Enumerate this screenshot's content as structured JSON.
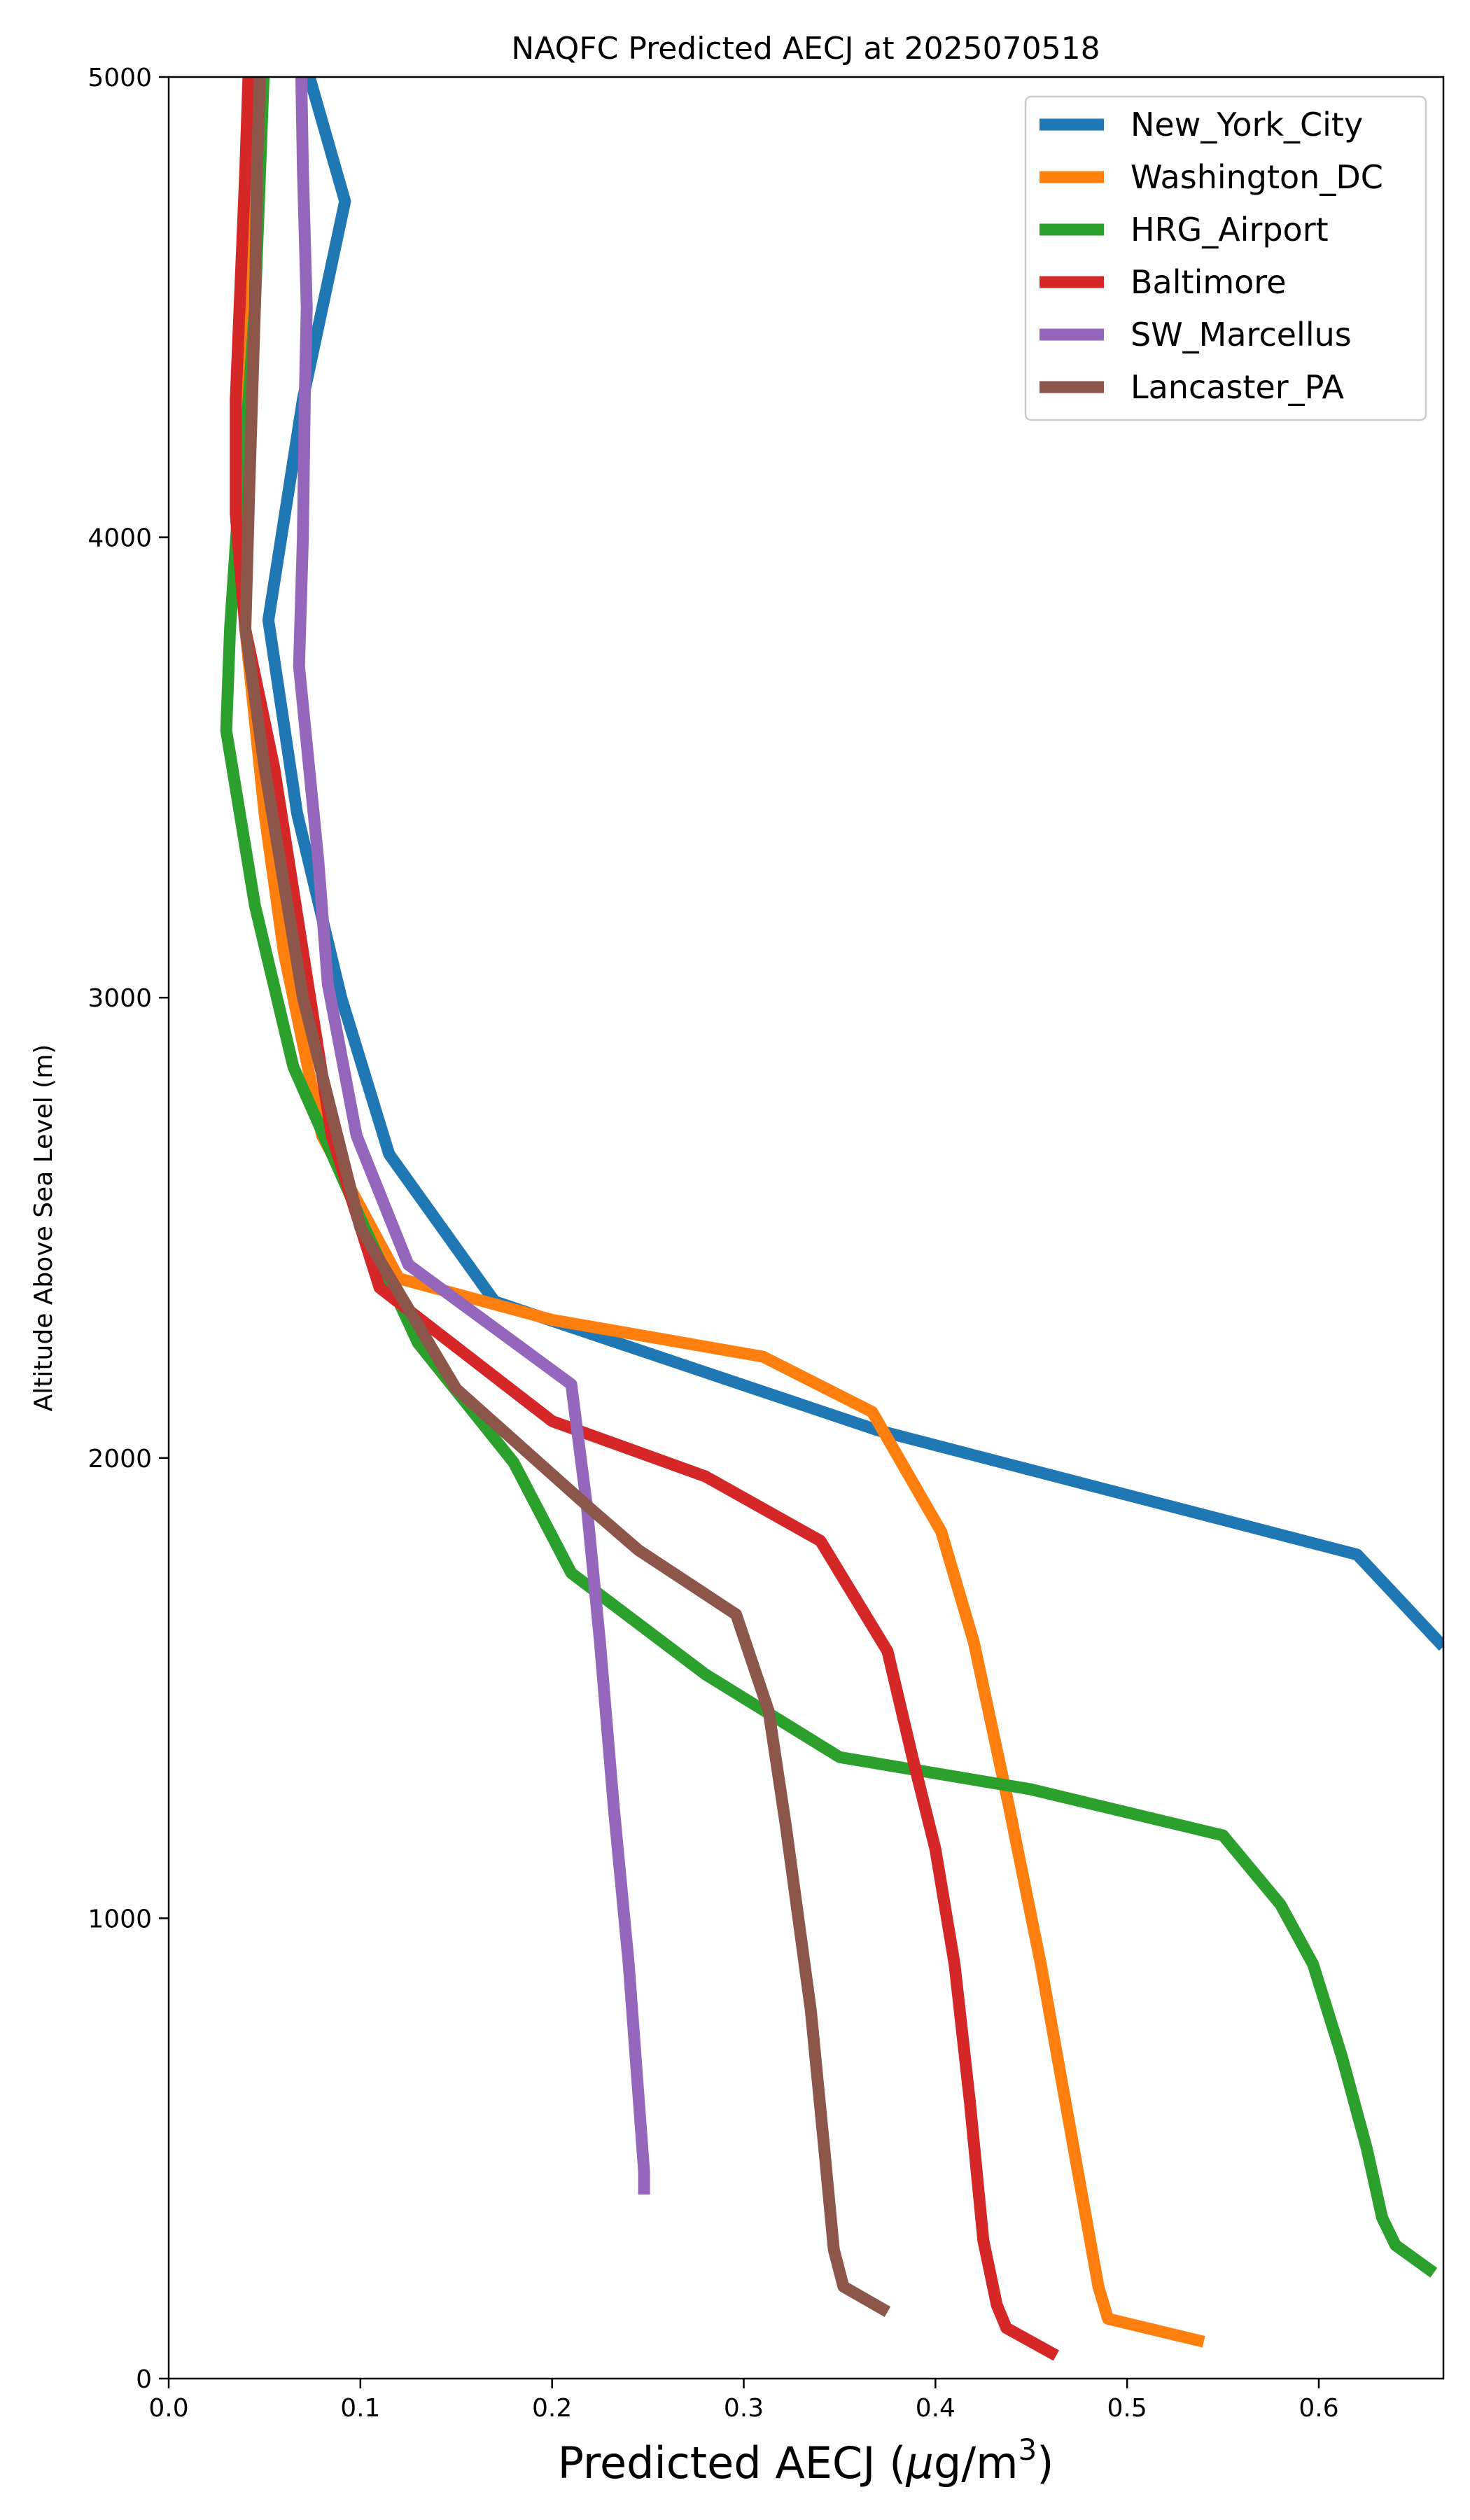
{
  "chart_data": {
    "type": "line",
    "title": "NAQFC Predicted AECJ at 2025070518",
    "xlabel": "Predicted AECJ (μg/m3)",
    "xlabel_main": "Predicted AECJ (",
    "xlabel_mu": "μ",
    "xlabel_unit": "g/m",
    "xlabel_sup": "3",
    "xlabel_close": ")",
    "ylabel": "Altitude Above Sea Level (m)",
    "xlim": [
      0.0,
      0.665
    ],
    "ylim": [
      0,
      5000
    ],
    "xticks": [
      0.0,
      0.1,
      0.2,
      0.3,
      0.4,
      0.5,
      0.6
    ],
    "xtick_labels": [
      "0.0",
      "0.1",
      "0.2",
      "0.3",
      "0.4",
      "0.5",
      "0.6"
    ],
    "yticks": [
      0,
      1000,
      2000,
      3000,
      4000,
      5000
    ],
    "ytick_labels": [
      "0",
      "1000",
      "2000",
      "3000",
      "4000",
      "5000"
    ],
    "grid": false,
    "legend_position": "top-right",
    "series": [
      {
        "name": "New_York_City",
        "color": "#1f77b4",
        "points": [
          [
            0.665,
            1590
          ],
          [
            0.62,
            1790
          ],
          [
            0.37,
            2060
          ],
          [
            0.17,
            2340
          ],
          [
            0.115,
            2660
          ],
          [
            0.09,
            3000
          ],
          [
            0.067,
            3400
          ],
          [
            0.052,
            3820
          ],
          [
            0.07,
            4300
          ],
          [
            0.092,
            4730
          ],
          [
            0.07,
            5050
          ]
        ]
      },
      {
        "name": "Washington_DC",
        "color": "#ff7f0e",
        "points": [
          [
            0.54,
            80
          ],
          [
            0.49,
            130
          ],
          [
            0.485,
            200
          ],
          [
            0.47,
            550
          ],
          [
            0.455,
            900
          ],
          [
            0.438,
            1250
          ],
          [
            0.42,
            1600
          ],
          [
            0.403,
            1840
          ],
          [
            0.367,
            2100
          ],
          [
            0.31,
            2220
          ],
          [
            0.2,
            2300
          ],
          [
            0.12,
            2390
          ],
          [
            0.08,
            2700
          ],
          [
            0.06,
            3100
          ],
          [
            0.05,
            3400
          ],
          [
            0.04,
            3800
          ],
          [
            0.04,
            4200
          ],
          [
            0.042,
            4700
          ],
          [
            0.044,
            5050
          ]
        ]
      },
      {
        "name": "HRG_Airport",
        "color": "#2ca02c",
        "points": [
          [
            0.66,
            230
          ],
          [
            0.64,
            290
          ],
          [
            0.633,
            350
          ],
          [
            0.625,
            500
          ],
          [
            0.612,
            700
          ],
          [
            0.597,
            900
          ],
          [
            0.58,
            1030
          ],
          [
            0.55,
            1180
          ],
          [
            0.45,
            1280
          ],
          [
            0.35,
            1350
          ],
          [
            0.28,
            1530
          ],
          [
            0.21,
            1750
          ],
          [
            0.18,
            1990
          ],
          [
            0.13,
            2250
          ],
          [
            0.1,
            2520
          ],
          [
            0.065,
            2850
          ],
          [
            0.045,
            3200
          ],
          [
            0.03,
            3580
          ],
          [
            0.032,
            3800
          ],
          [
            0.036,
            4050
          ],
          [
            0.04,
            4200
          ],
          [
            0.045,
            4500
          ],
          [
            0.05,
            5050
          ]
        ]
      },
      {
        "name": "Baltimore",
        "color": "#d62728",
        "points": [
          [
            0.463,
            50
          ],
          [
            0.437,
            110
          ],
          [
            0.432,
            160
          ],
          [
            0.425,
            300
          ],
          [
            0.418,
            600
          ],
          [
            0.41,
            900
          ],
          [
            0.4,
            1150
          ],
          [
            0.388,
            1350
          ],
          [
            0.375,
            1580
          ],
          [
            0.34,
            1820
          ],
          [
            0.28,
            1960
          ],
          [
            0.2,
            2080
          ],
          [
            0.11,
            2370
          ],
          [
            0.085,
            2700
          ],
          [
            0.07,
            3100
          ],
          [
            0.055,
            3500
          ],
          [
            0.04,
            3800
          ],
          [
            0.035,
            4050
          ],
          [
            0.035,
            4300
          ],
          [
            0.04,
            4800
          ],
          [
            0.042,
            5050
          ]
        ]
      },
      {
        "name": "SW_Marcellus",
        "color": "#9467bd",
        "points": [
          [
            0.248,
            400
          ],
          [
            0.248,
            450
          ],
          [
            0.24,
            900
          ],
          [
            0.232,
            1250
          ],
          [
            0.225,
            1600
          ],
          [
            0.218,
            1900
          ],
          [
            0.21,
            2160
          ],
          [
            0.125,
            2420
          ],
          [
            0.098,
            2700
          ],
          [
            0.083,
            3030
          ],
          [
            0.078,
            3300
          ],
          [
            0.068,
            3720
          ],
          [
            0.07,
            4000
          ],
          [
            0.071,
            4300
          ],
          [
            0.072,
            4500
          ],
          [
            0.07,
            4800
          ],
          [
            0.069,
            5050
          ]
        ]
      },
      {
        "name": "Lancaster_PA",
        "color": "#8c564b",
        "points": [
          [
            0.375,
            145
          ],
          [
            0.352,
            200
          ],
          [
            0.347,
            280
          ],
          [
            0.342,
            500
          ],
          [
            0.335,
            800
          ],
          [
            0.322,
            1200
          ],
          [
            0.313,
            1450
          ],
          [
            0.296,
            1660
          ],
          [
            0.245,
            1800
          ],
          [
            0.22,
            1890
          ],
          [
            0.15,
            2150
          ],
          [
            0.1,
            2500
          ],
          [
            0.07,
            3000
          ],
          [
            0.05,
            3500
          ],
          [
            0.04,
            3800
          ],
          [
            0.042,
            4100
          ],
          [
            0.045,
            4500
          ],
          [
            0.046,
            4800
          ],
          [
            0.048,
            5050
          ]
        ]
      }
    ]
  }
}
